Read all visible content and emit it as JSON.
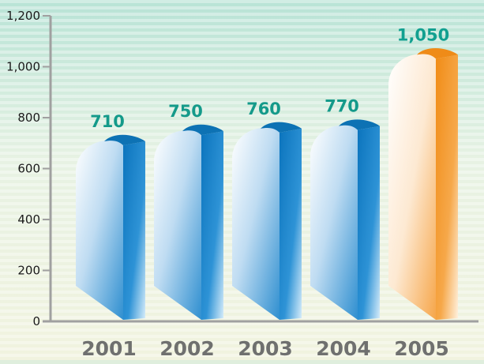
{
  "chart_data": {
    "type": "bar",
    "title": "",
    "xlabel": "",
    "ylabel": "",
    "categories": [
      "2001",
      "2002",
      "2003",
      "2004",
      "2005"
    ],
    "values": [
      710,
      750,
      760,
      770,
      1050
    ],
    "value_labels": [
      "710",
      "750",
      "760",
      "770",
      "1,050"
    ],
    "ylim": [
      0,
      1200
    ],
    "yticks": [
      0,
      200,
      400,
      600,
      800,
      1000,
      1200
    ],
    "ytick_labels": [
      "0",
      "200",
      "400",
      "600",
      "800",
      "1,000",
      "1,200"
    ],
    "grid": false,
    "legend": "none",
    "highlight_index": 4
  },
  "colors": {
    "background_stripe_light": "#eef6ea",
    "background_stripe_dark": "#c9e7d2",
    "bar_front": "#cfe6f6",
    "bar_side": "#1d82c6",
    "bar_top": "#0d72b4",
    "highlight_front": "#fde6c8",
    "highlight_side": "#f39a2a",
    "highlight_top": "#ef8b18",
    "value_label": "#149a8a",
    "year_label": "#6f706f",
    "axis": "#9b9b9b"
  }
}
